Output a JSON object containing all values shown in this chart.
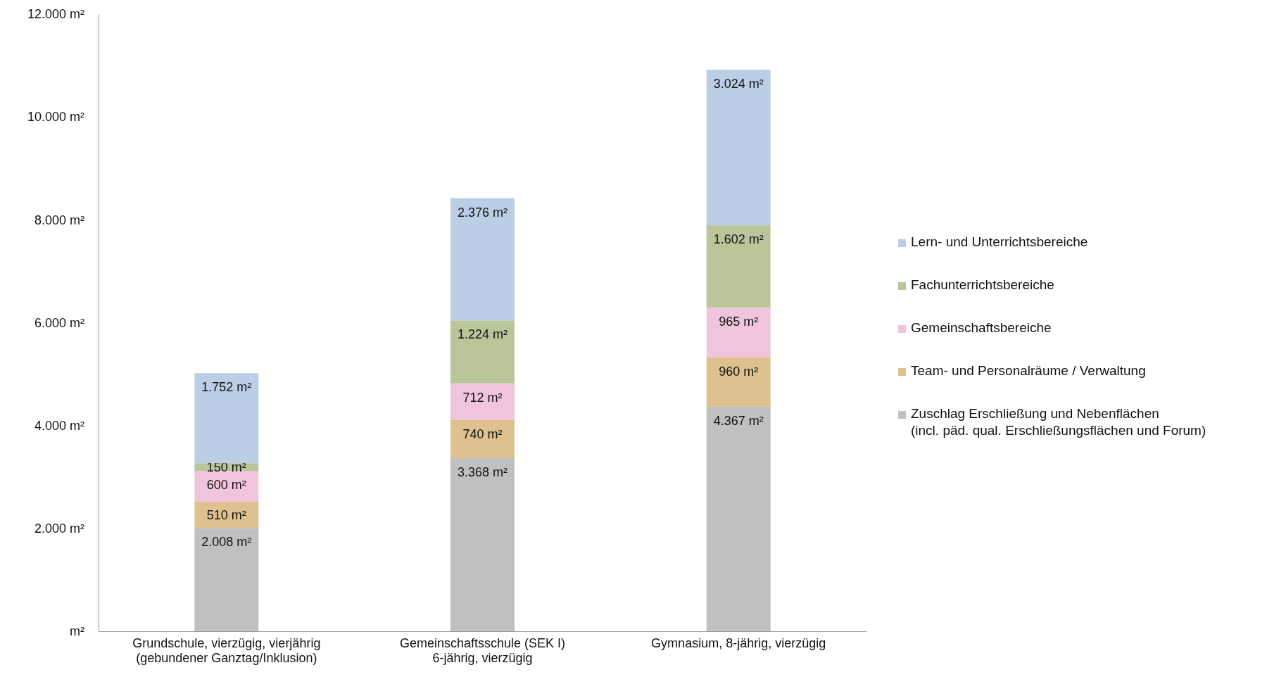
{
  "chart_data": {
    "type": "bar",
    "stacked": true,
    "categories": [
      "Grundschule, vierzügig, vierjährig\n(gebundener Ganztag/Inklusion)",
      "Gemeinschaftsschule (SEK I)\n6-jährig, vierzügig",
      "Gymnasium, 8-jährig, vierzügig"
    ],
    "series": [
      {
        "name": "Zuschlag Erschließung und Nebenflächen\n(incl. päd. qual. Erschließungsflächen und Forum)",
        "color": "#c0c0c0",
        "values": [
          2008,
          3368,
          4367
        ],
        "value_labels": [
          "2.008 m²",
          "3.368 m²",
          "4.367 m²"
        ]
      },
      {
        "name": "Team- und Personalräume / Verwaltung",
        "color": "#dfc08f",
        "values": [
          510,
          740,
          960
        ],
        "value_labels": [
          "510 m²",
          "740 m²",
          "960 m²"
        ]
      },
      {
        "name": "Gemeinschaftsbereiche",
        "color": "#f0c4dc",
        "values": [
          600,
          712,
          965
        ],
        "value_labels": [
          "600 m²",
          "712 m²",
          "965 m²"
        ]
      },
      {
        "name": "Fachunterrichtsbereiche",
        "color": "#b8c69a",
        "values": [
          150,
          1224,
          1602
        ],
        "value_labels": [
          "150 m²",
          "1.224 m²",
          "1.602 m²"
        ]
      },
      {
        "name": "Lern- und Unterrichtsbereiche",
        "color": "#bccde6",
        "values": [
          1752,
          2376,
          3024
        ],
        "value_labels": [
          "1.752 m²",
          "2.376 m²",
          "3.024 m²"
        ]
      }
    ],
    "ylim": [
      0,
      12000
    ],
    "yticks": [
      {
        "value": 0,
        "label": "m²"
      },
      {
        "value": 2000,
        "label": "2.000 m²"
      },
      {
        "value": 4000,
        "label": "4.000 m²"
      },
      {
        "value": 6000,
        "label": "6.000 m²"
      },
      {
        "value": 8000,
        "label": "8.000 m²"
      },
      {
        "value": 10000,
        "label": "10.000 m²"
      },
      {
        "value": 12000,
        "label": "12.000 m²"
      }
    ],
    "legend": "right"
  }
}
